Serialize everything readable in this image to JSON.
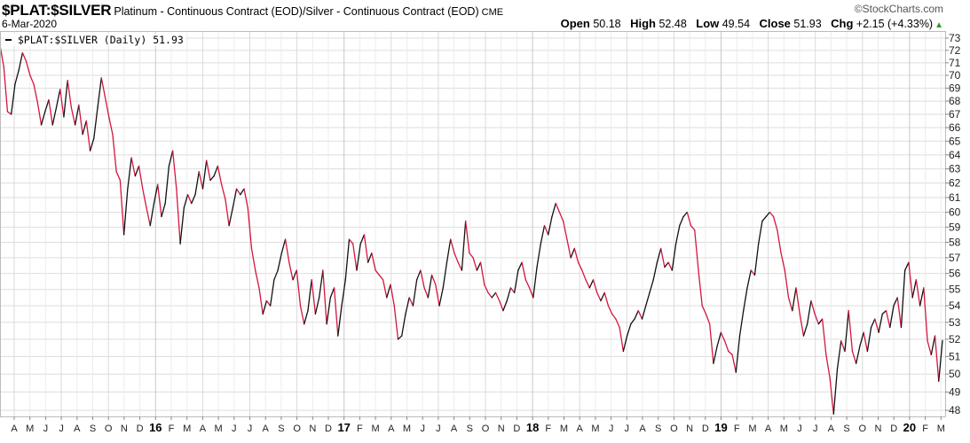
{
  "header": {
    "symbol": "$PLAT:$SILVER",
    "description": "Platinum - Continuous Contract (EOD)/Silver - Continuous Contract (EOD)",
    "exchange": "CME",
    "date": "6-Mar-2020",
    "brand": "©StockCharts.com",
    "open_label": "Open",
    "open": "50.18",
    "high_label": "High",
    "high": "52.48",
    "low_label": "Low",
    "low": "49.54",
    "close_label": "Close",
    "close": "51.93",
    "chg_label": "Chg",
    "chg": "+2.15 (+4.33%)",
    "chg_icon": "up-triangle-icon"
  },
  "legend": {
    "text": "$PLAT:$SILVER (Daily) 51.93"
  },
  "colors": {
    "up": "#111111",
    "down": "#d4163c",
    "grid": "#dddddd",
    "up_arrow": "#2e9a2e"
  },
  "chart_data": {
    "type": "line",
    "title": "$PLAT:$SILVER",
    "xlabel": "",
    "ylabel": "",
    "y_scale": "log",
    "ylim": [
      47.5,
      73.5
    ],
    "y_ticks": [
      73,
      72,
      71,
      70,
      69,
      68,
      67,
      66,
      65,
      64,
      63,
      62,
      61,
      60,
      59,
      58,
      57,
      56,
      55,
      54,
      53,
      52,
      51,
      50,
      49,
      48
    ],
    "x_start": "2015-03",
    "x_end": "2020-03-06",
    "x_ticks": [
      "A",
      "M",
      "J",
      "J",
      "A",
      "S",
      "O",
      "N",
      "D",
      "16",
      "F",
      "M",
      "A",
      "M",
      "J",
      "J",
      "A",
      "S",
      "O",
      "N",
      "D",
      "17",
      "F",
      "M",
      "A",
      "M",
      "J",
      "J",
      "A",
      "S",
      "O",
      "N",
      "D",
      "18",
      "F",
      "M",
      "A",
      "M",
      "J",
      "J",
      "A",
      "S",
      "O",
      "N",
      "D",
      "19",
      "F",
      "M",
      "A",
      "M",
      "J",
      "J",
      "A",
      "S",
      "O",
      "N",
      "D",
      "20",
      "F",
      "M"
    ],
    "grid": true,
    "legend_position": "top-left",
    "series": [
      {
        "name": "$PLAT:$SILVER (Daily)",
        "values": [
          72.4,
          70.7,
          67.2,
          67.0,
          69.3,
          70.4,
          71.8,
          71.1,
          70.0,
          69.3,
          67.9,
          66.2,
          67.2,
          68.1,
          66.2,
          67.5,
          68.9,
          66.8,
          69.6,
          67.5,
          66.2,
          67.7,
          65.5,
          66.5,
          64.3,
          65.2,
          67.5,
          69.8,
          68.3,
          66.8,
          65.5,
          62.8,
          62.2,
          58.5,
          61.6,
          63.8,
          62.5,
          63.2,
          61.6,
          60.3,
          59.1,
          60.6,
          61.9,
          59.7,
          60.6,
          63.2,
          64.3,
          61.6,
          57.9,
          60.3,
          61.2,
          60.6,
          61.2,
          62.8,
          61.6,
          63.6,
          62.2,
          62.5,
          63.2,
          61.9,
          60.9,
          59.1,
          60.3,
          61.6,
          61.2,
          61.6,
          60.3,
          57.6,
          56.2,
          55.1,
          53.5,
          54.3,
          54.0,
          55.6,
          56.2,
          57.3,
          58.2,
          56.7,
          55.6,
          56.2,
          54.0,
          52.9,
          53.7,
          55.6,
          53.5,
          54.5,
          56.2,
          52.9,
          54.5,
          55.1,
          52.2,
          54.0,
          55.6,
          58.2,
          57.9,
          56.2,
          57.9,
          58.5,
          56.7,
          57.3,
          56.2,
          55.9,
          55.6,
          54.5,
          55.3,
          54.0,
          52.0,
          52.2,
          53.5,
          54.5,
          54.0,
          55.6,
          56.2,
          55.1,
          54.5,
          55.9,
          55.3,
          54.0,
          55.1,
          56.7,
          58.2,
          57.3,
          56.7,
          56.2,
          59.4,
          57.3,
          57.0,
          56.2,
          56.7,
          55.3,
          54.8,
          54.5,
          54.8,
          54.3,
          53.7,
          54.3,
          55.1,
          54.8,
          56.2,
          56.7,
          55.6,
          55.1,
          54.5,
          56.4,
          57.9,
          59.1,
          58.5,
          59.7,
          60.6,
          60.0,
          59.4,
          58.2,
          57.0,
          57.6,
          56.7,
          56.2,
          55.6,
          55.1,
          55.6,
          54.8,
          54.3,
          54.8,
          54.0,
          53.5,
          53.2,
          52.7,
          51.3,
          52.2,
          52.9,
          53.2,
          53.7,
          53.2,
          54.0,
          54.8,
          55.6,
          56.7,
          57.6,
          56.4,
          56.7,
          56.2,
          57.9,
          59.1,
          59.7,
          60.0,
          59.1,
          58.8,
          56.2,
          54.0,
          53.5,
          52.9,
          50.6,
          51.6,
          52.4,
          51.9,
          51.3,
          51.1,
          50.1,
          52.2,
          53.7,
          55.1,
          56.2,
          55.9,
          57.9,
          59.4,
          59.7,
          60.0,
          59.7,
          58.8,
          57.3,
          56.2,
          54.5,
          53.7,
          55.1,
          53.5,
          52.2,
          52.9,
          54.3,
          53.5,
          52.9,
          53.2,
          51.1,
          49.8,
          47.8,
          50.3,
          51.9,
          51.3,
          53.7,
          51.3,
          50.6,
          51.6,
          52.4,
          51.3,
          52.7,
          53.2,
          52.4,
          53.5,
          53.7,
          52.7,
          54.0,
          54.5,
          52.7,
          56.2,
          56.7,
          54.5,
          55.6,
          54.0,
          55.1,
          51.9,
          51.1,
          52.2,
          49.6,
          51.93
        ]
      }
    ]
  }
}
